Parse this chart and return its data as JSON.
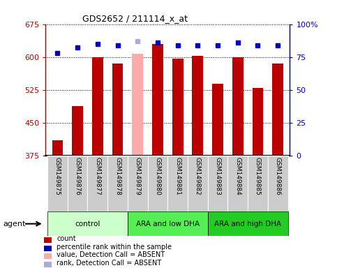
{
  "title": "GDS2652 / 211114_x_at",
  "samples": [
    "GSM149875",
    "GSM149876",
    "GSM149877",
    "GSM149878",
    "GSM149879",
    "GSM149880",
    "GSM149881",
    "GSM149882",
    "GSM149883",
    "GSM149884",
    "GSM149885",
    "GSM149886"
  ],
  "count_values": [
    410,
    487,
    600,
    585,
    608,
    630,
    596,
    602,
    538,
    600,
    530,
    585
  ],
  "count_absent": [
    false,
    false,
    false,
    false,
    true,
    false,
    false,
    false,
    false,
    false,
    false,
    false
  ],
  "percentile_values": [
    78,
    82,
    85,
    84,
    87,
    86,
    84,
    84,
    84,
    86,
    84,
    84
  ],
  "percentile_absent": [
    false,
    false,
    false,
    false,
    true,
    false,
    false,
    false,
    false,
    false,
    false,
    false
  ],
  "ylim_left": [
    375,
    675
  ],
  "ylim_right": [
    0,
    100
  ],
  "yticks_left": [
    375,
    450,
    525,
    600,
    675
  ],
  "yticks_right": [
    0,
    25,
    50,
    75,
    100
  ],
  "groups": [
    {
      "label": "control",
      "start": 0,
      "end": 3,
      "color": "#ccffcc"
    },
    {
      "label": "ARA and low DHA",
      "start": 4,
      "end": 7,
      "color": "#55ee55"
    },
    {
      "label": "ARA and high DHA",
      "start": 8,
      "end": 11,
      "color": "#22cc22"
    }
  ],
  "bar_color_normal": "#bb0000",
  "bar_color_absent": "#ffaaaa",
  "dot_color_normal": "#0000bb",
  "dot_color_absent": "#aaaadd",
  "bar_width": 0.55,
  "bg_tick": "#cccccc",
  "legend_items": [
    {
      "label": "count",
      "color": "#bb0000"
    },
    {
      "label": "percentile rank within the sample",
      "color": "#0000bb"
    },
    {
      "label": "value, Detection Call = ABSENT",
      "color": "#ffaaaa"
    },
    {
      "label": "rank, Detection Call = ABSENT",
      "color": "#aaaadd"
    }
  ],
  "agent_label": "agent",
  "right_axis_color": "#0000bb",
  "left_axis_color": "#bb0000"
}
